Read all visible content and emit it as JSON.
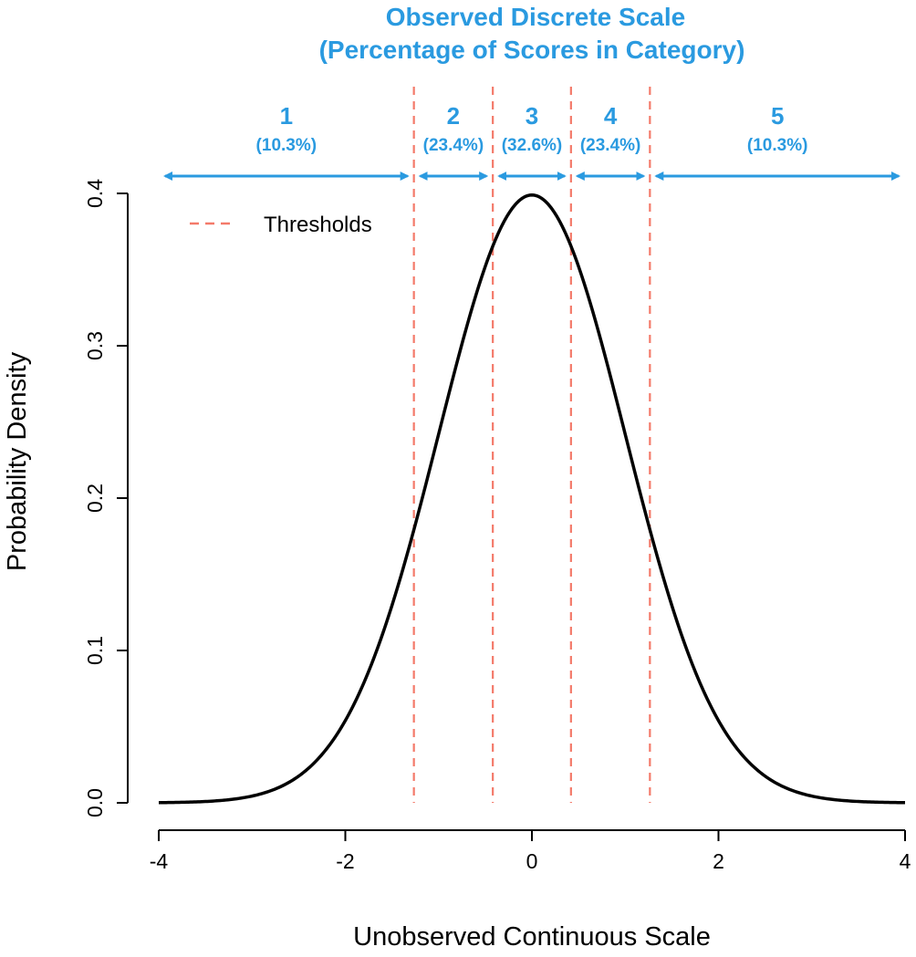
{
  "colors": {
    "accent": "#2a9ae0",
    "threshold": "#f47a6a",
    "curve": "#000000",
    "axis": "#000000"
  },
  "chart_data": {
    "type": "line",
    "title_lines": [
      "Observed Discrete Scale",
      "(Percentage of Scores in Category)"
    ],
    "xlabel": "Unobserved Continuous Scale",
    "ylabel": "Probability Density",
    "xlim": [
      -4,
      4
    ],
    "ylim": [
      0,
      0.4
    ],
    "xticks": [
      -4,
      -2,
      0,
      2,
      4
    ],
    "xtick_labels": [
      "-4",
      "-2",
      "0",
      "2",
      "4"
    ],
    "yticks": [
      0.0,
      0.1,
      0.2,
      0.3,
      0.4
    ],
    "ytick_labels": [
      "0.0",
      "0.1",
      "0.2",
      "0.3",
      "0.4"
    ],
    "series": [
      {
        "distribution": "standard normal density",
        "mean": 0,
        "sd": 1,
        "x_range": [
          -4,
          4
        ]
      }
    ],
    "thresholds": [
      -1.265,
      -0.419,
      0.419,
      1.265
    ],
    "legend": {
      "position": "top-left",
      "entries": [
        {
          "label": "Thresholds",
          "style": "dashed"
        }
      ]
    },
    "categories": [
      {
        "label": "1",
        "percent": "(10.3%)",
        "x_range": [
          -4,
          -1.265
        ]
      },
      {
        "label": "2",
        "percent": "(23.4%)",
        "x_range": [
          -1.265,
          -0.419
        ]
      },
      {
        "label": "3",
        "percent": "(32.6%)",
        "x_range": [
          -0.419,
          0.419
        ]
      },
      {
        "label": "4",
        "percent": "(23.4%)",
        "x_range": [
          0.419,
          1.265
        ]
      },
      {
        "label": "5",
        "percent": "(10.3%)",
        "x_range": [
          1.265,
          4
        ]
      }
    ]
  }
}
